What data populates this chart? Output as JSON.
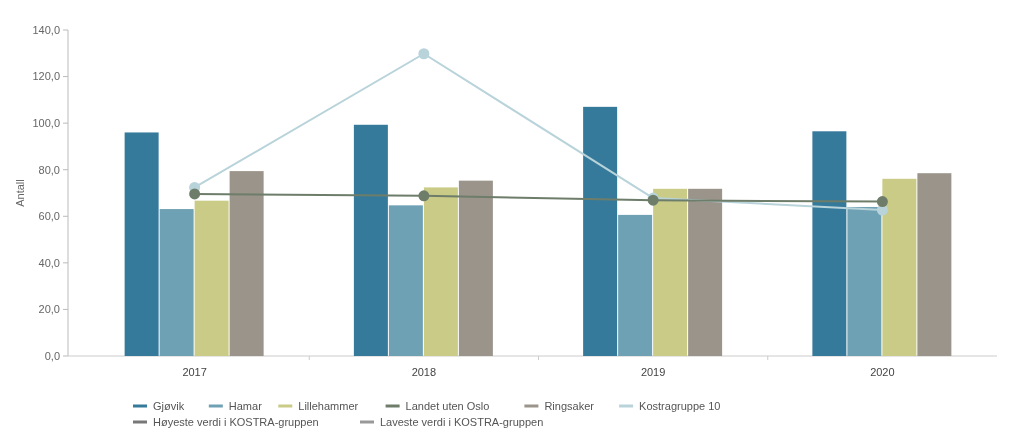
{
  "chart_data": {
    "type": "bar",
    "ylabel": "Antall",
    "categories": [
      "2017",
      "2018",
      "2019",
      "2020"
    ],
    "series": [
      {
        "name": "Gjøvik",
        "color": "#357a9b",
        "values": [
          96.0,
          99.3,
          107.0,
          96.5
        ]
      },
      {
        "name": "Hamar",
        "color": "#6fa1b5",
        "values": [
          63.1,
          64.7,
          60.6,
          64.0
        ]
      },
      {
        "name": "Lillehammer",
        "color": "#c9cb87",
        "values": [
          66.7,
          72.4,
          71.8,
          76.1
        ]
      },
      {
        "name": "Landet uten Oslo",
        "type": "line",
        "color": "#6e7d6a",
        "values": [
          69.6,
          68.8,
          66.9,
          66.3
        ]
      },
      {
        "name": "Ringsaker",
        "color": "#9a948a",
        "values": [
          79.4,
          75.3,
          71.8,
          78.5
        ]
      },
      {
        "name": "Kostragruppe 10",
        "type": "line",
        "color": "#b8d3da",
        "values": [
          72.4,
          129.8,
          67.8,
          62.7
        ]
      },
      {
        "name": "Høyeste verdi i KOSTRA-gruppen",
        "type": "line",
        "color": "#777777",
        "values": [
          null,
          null,
          null,
          null
        ]
      },
      {
        "name": "Laveste verdi i KOSTRA-gruppen",
        "type": "line",
        "color": "#999999",
        "values": [
          null,
          null,
          null,
          null
        ]
      }
    ],
    "ylim": [
      0,
      140
    ],
    "yticks": [
      {
        "value": 0,
        "label": "0,0"
      },
      {
        "value": 20,
        "label": "20,0"
      },
      {
        "value": 40,
        "label": "40,0"
      },
      {
        "value": 60,
        "label": "60,0"
      },
      {
        "value": 80,
        "label": "80,0"
      },
      {
        "value": 100,
        "label": "100,0"
      },
      {
        "value": 120,
        "label": "120,0"
      },
      {
        "value": 140,
        "label": "140,0"
      }
    ],
    "legend": "bottom",
    "marker": "circle",
    "grid": false
  }
}
